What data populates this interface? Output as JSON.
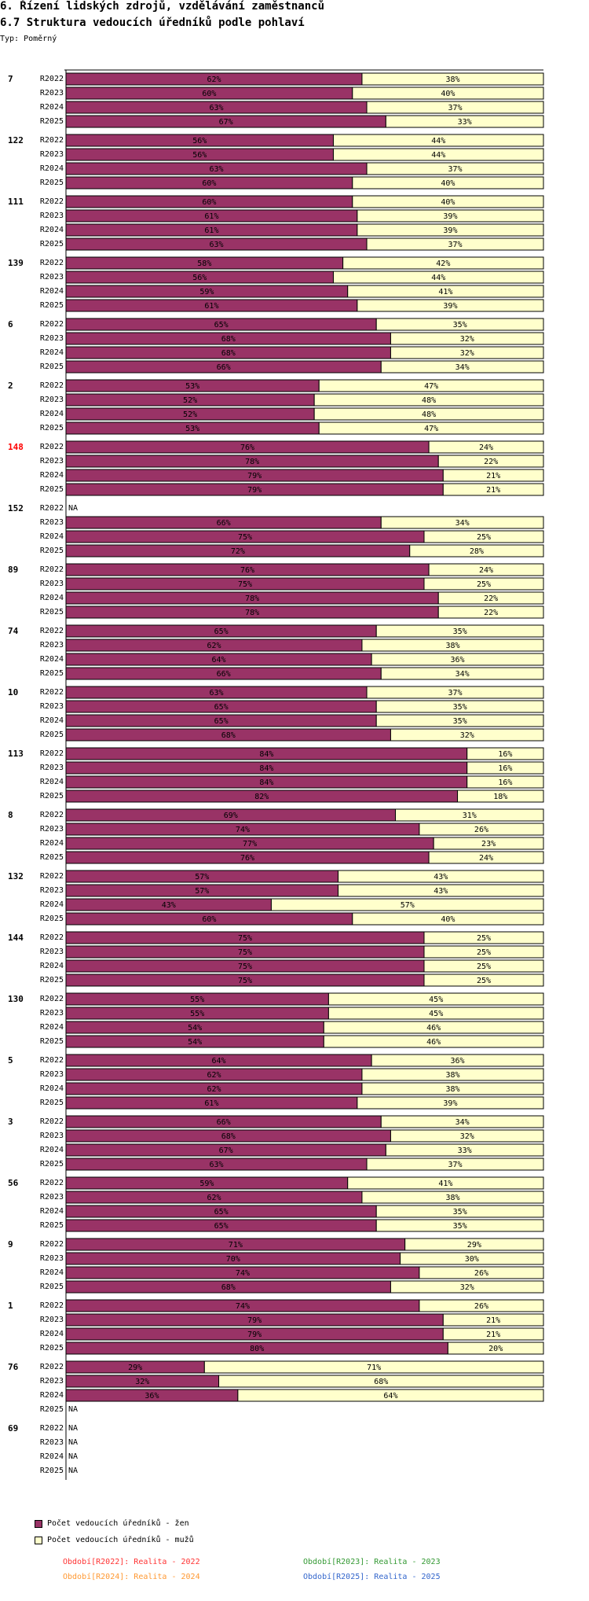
{
  "header": {
    "title": "6. Řízení lidských zdrojů, vzdělávání zaměstnanců",
    "subtitle": "6.7 Struktura vedoucích úředníků podle pohlaví",
    "type_label": "Typ: Poměrný"
  },
  "colors": {
    "women": "#993366",
    "men": "#ffffcc",
    "highlight": "#ff0000"
  },
  "chart_data": {
    "type": "bar",
    "stacked": "percent",
    "title": "6.7 Struktura vedoucích úředníků podle pohlaví",
    "periods": [
      "R2022",
      "R2023",
      "R2024",
      "R2025"
    ],
    "legend": [
      "Počet vedoucích úředníků - žen",
      "Počet vedoucích úředníků - mužů"
    ],
    "na_label": "NA",
    "groups": [
      {
        "id": "7",
        "highlight": false,
        "values": [
          [
            62,
            38
          ],
          [
            60,
            40
          ],
          [
            63,
            37
          ],
          [
            67,
            33
          ]
        ],
        "labels": [
          [
            "62%",
            "38%"
          ],
          [
            "60%",
            "40%"
          ],
          [
            "63%",
            "37%"
          ],
          [
            "67%",
            "33%"
          ]
        ]
      },
      {
        "id": "122",
        "highlight": false,
        "values": [
          [
            56,
            44
          ],
          [
            56,
            44
          ],
          [
            63,
            37
          ],
          [
            60,
            40
          ]
        ],
        "labels": [
          [
            "56%",
            "44%"
          ],
          [
            "56%",
            "44%"
          ],
          [
            "63%",
            "37%"
          ],
          [
            "60%",
            "40%"
          ]
        ]
      },
      {
        "id": "111",
        "highlight": false,
        "values": [
          [
            60,
            40
          ],
          [
            61,
            39
          ],
          [
            61,
            39
          ],
          [
            63,
            37
          ]
        ],
        "labels": [
          [
            "60%",
            "40%"
          ],
          [
            "61%",
            "39%"
          ],
          [
            "61%",
            "39%"
          ],
          [
            "63%",
            "37%"
          ]
        ]
      },
      {
        "id": "139",
        "highlight": false,
        "values": [
          [
            58,
            42
          ],
          [
            56,
            44
          ],
          [
            59,
            41
          ],
          [
            61,
            39
          ]
        ],
        "labels": [
          [
            "58%",
            "42%"
          ],
          [
            "56%",
            "44%"
          ],
          [
            "59%",
            "41%"
          ],
          [
            "61%",
            "39%"
          ]
        ]
      },
      {
        "id": "6",
        "highlight": false,
        "values": [
          [
            65,
            35
          ],
          [
            68,
            32
          ],
          [
            68,
            32
          ],
          [
            66,
            34
          ]
        ],
        "labels": [
          [
            "65%",
            "35%"
          ],
          [
            "68%",
            "32%"
          ],
          [
            "68%",
            "32%"
          ],
          [
            "66%",
            "34%"
          ]
        ]
      },
      {
        "id": "2",
        "highlight": false,
        "values": [
          [
            53,
            47
          ],
          [
            52,
            48
          ],
          [
            52,
            48
          ],
          [
            53,
            47
          ]
        ],
        "labels": [
          [
            "53%",
            "47%"
          ],
          [
            "52%",
            "48%"
          ],
          [
            "52%",
            "48%"
          ],
          [
            "53%",
            "47%"
          ]
        ]
      },
      {
        "id": "148",
        "highlight": true,
        "values": [
          [
            76,
            24
          ],
          [
            78,
            22
          ],
          [
            79,
            21
          ],
          [
            79,
            21
          ]
        ],
        "labels": [
          [
            "76%",
            "24%"
          ],
          [
            "78%",
            "22%"
          ],
          [
            "79%",
            "21%"
          ],
          [
            "79%",
            "21%"
          ]
        ]
      },
      {
        "id": "152",
        "highlight": false,
        "values": [
          null,
          [
            66,
            34
          ],
          [
            75,
            25
          ],
          [
            72,
            28
          ]
        ],
        "labels": [
          null,
          [
            "66%",
            "34%"
          ],
          [
            "75%",
            "25%"
          ],
          [
            "72%",
            "28%"
          ]
        ]
      },
      {
        "id": "89",
        "highlight": false,
        "values": [
          [
            76,
            24
          ],
          [
            75,
            25
          ],
          [
            78,
            22
          ],
          [
            78,
            22
          ]
        ],
        "labels": [
          [
            "76%",
            "24%"
          ],
          [
            "75%",
            "25%"
          ],
          [
            "78%",
            "22%"
          ],
          [
            "78%",
            "22%"
          ]
        ]
      },
      {
        "id": "74",
        "highlight": false,
        "values": [
          [
            65,
            35
          ],
          [
            62,
            38
          ],
          [
            64,
            36
          ],
          [
            66,
            34
          ]
        ],
        "labels": [
          [
            "65%",
            "35%"
          ],
          [
            "62%",
            "38%"
          ],
          [
            "64%",
            "36%"
          ],
          [
            "66%",
            "34%"
          ]
        ]
      },
      {
        "id": "10",
        "highlight": false,
        "values": [
          [
            63,
            37
          ],
          [
            65,
            35
          ],
          [
            65,
            35
          ],
          [
            68,
            32
          ]
        ],
        "labels": [
          [
            "63%",
            "37%"
          ],
          [
            "65%",
            "35%"
          ],
          [
            "65%",
            "35%"
          ],
          [
            "68%",
            "32%"
          ]
        ]
      },
      {
        "id": "113",
        "highlight": false,
        "values": [
          [
            84,
            16
          ],
          [
            84,
            16
          ],
          [
            84,
            16
          ],
          [
            82,
            18
          ]
        ],
        "labels": [
          [
            "84%",
            "16%"
          ],
          [
            "84%",
            "16%"
          ],
          [
            "84%",
            "16%"
          ],
          [
            "82%",
            "18%"
          ]
        ]
      },
      {
        "id": "8",
        "highlight": false,
        "values": [
          [
            69,
            31
          ],
          [
            74,
            26
          ],
          [
            77,
            23
          ],
          [
            76,
            24
          ]
        ],
        "labels": [
          [
            "69%",
            "31%"
          ],
          [
            "74%",
            "26%"
          ],
          [
            "77%",
            "23%"
          ],
          [
            "76%",
            "24%"
          ]
        ]
      },
      {
        "id": "132",
        "highlight": false,
        "values": [
          [
            57,
            43
          ],
          [
            57,
            43
          ],
          [
            43,
            57
          ],
          [
            60,
            40
          ]
        ],
        "labels": [
          [
            "57%",
            "43%"
          ],
          [
            "57%",
            "43%"
          ],
          [
            "43%",
            "57%"
          ],
          [
            "60%",
            "40%"
          ]
        ]
      },
      {
        "id": "144",
        "highlight": false,
        "values": [
          [
            75,
            25
          ],
          [
            75,
            25
          ],
          [
            75,
            25
          ],
          [
            75,
            25
          ]
        ],
        "labels": [
          [
            "75%",
            "25%"
          ],
          [
            "75%",
            "25%"
          ],
          [
            "75%",
            "25%"
          ],
          [
            "75%",
            "25%"
          ]
        ]
      },
      {
        "id": "130",
        "highlight": false,
        "values": [
          [
            55,
            45
          ],
          [
            55,
            45
          ],
          [
            54,
            46
          ],
          [
            54,
            46
          ]
        ],
        "labels": [
          [
            "55%",
            "45%"
          ],
          [
            "55%",
            "45%"
          ],
          [
            "54%",
            "46%"
          ],
          [
            "54%",
            "46%"
          ]
        ]
      },
      {
        "id": "5",
        "highlight": false,
        "values": [
          [
            64,
            36
          ],
          [
            62,
            38
          ],
          [
            62,
            38
          ],
          [
            61,
            39
          ]
        ],
        "labels": [
          [
            "64%",
            "36%"
          ],
          [
            "62%",
            "38%"
          ],
          [
            "62%",
            "38%"
          ],
          [
            "61%",
            "39%"
          ]
        ]
      },
      {
        "id": "3",
        "highlight": false,
        "values": [
          [
            66,
            34
          ],
          [
            68,
            32
          ],
          [
            67,
            33
          ],
          [
            63,
            37
          ]
        ],
        "labels": [
          [
            "66%",
            "34%"
          ],
          [
            "68%",
            "32%"
          ],
          [
            "67%",
            "33%"
          ],
          [
            "63%",
            "37%"
          ]
        ]
      },
      {
        "id": "56",
        "highlight": false,
        "values": [
          [
            59,
            41
          ],
          [
            62,
            38
          ],
          [
            65,
            35
          ],
          [
            65,
            35
          ]
        ],
        "labels": [
          [
            "59%",
            "41%"
          ],
          [
            "62%",
            "38%"
          ],
          [
            "65%",
            "35%"
          ],
          [
            "65%",
            "35%"
          ]
        ]
      },
      {
        "id": "9",
        "highlight": false,
        "values": [
          [
            71,
            29
          ],
          [
            70,
            30
          ],
          [
            74,
            26
          ],
          [
            68,
            32
          ]
        ],
        "labels": [
          [
            "71%",
            "29%"
          ],
          [
            "70%",
            "30%"
          ],
          [
            "74%",
            "26%"
          ],
          [
            "68%",
            "32%"
          ]
        ]
      },
      {
        "id": "1",
        "highlight": false,
        "values": [
          [
            74,
            26
          ],
          [
            79,
            21
          ],
          [
            79,
            21
          ],
          [
            80,
            20
          ]
        ],
        "labels": [
          [
            "74%",
            "26%"
          ],
          [
            "79%",
            "21%"
          ],
          [
            "79%",
            "21%"
          ],
          [
            "80%",
            "20%"
          ]
        ]
      },
      {
        "id": "76",
        "highlight": false,
        "values": [
          [
            29,
            71
          ],
          [
            32,
            68
          ],
          [
            36,
            64
          ],
          null
        ],
        "labels": [
          [
            "29%",
            "71%"
          ],
          [
            "32%",
            "68%"
          ],
          [
            "36%",
            "64%"
          ],
          null
        ]
      },
      {
        "id": "69",
        "highlight": false,
        "values": [
          null,
          null,
          null,
          null
        ],
        "labels": [
          null,
          null,
          null,
          null
        ]
      }
    ]
  },
  "legend": {
    "women": "Počet vedoucích úředníků - žen",
    "men": "Počet vedoucích úředníků - mužů"
  },
  "periods_legend": [
    {
      "text": "Období[R2022]: Realita - 2022",
      "color": "#ff3333"
    },
    {
      "text": "Období[R2023]: Realita - 2023",
      "color": "#339933"
    },
    {
      "text": "Období[R2024]: Realita - 2024",
      "color": "#ff9933"
    },
    {
      "text": "Období[R2025]: Realita - 2025",
      "color": "#3366cc"
    }
  ]
}
